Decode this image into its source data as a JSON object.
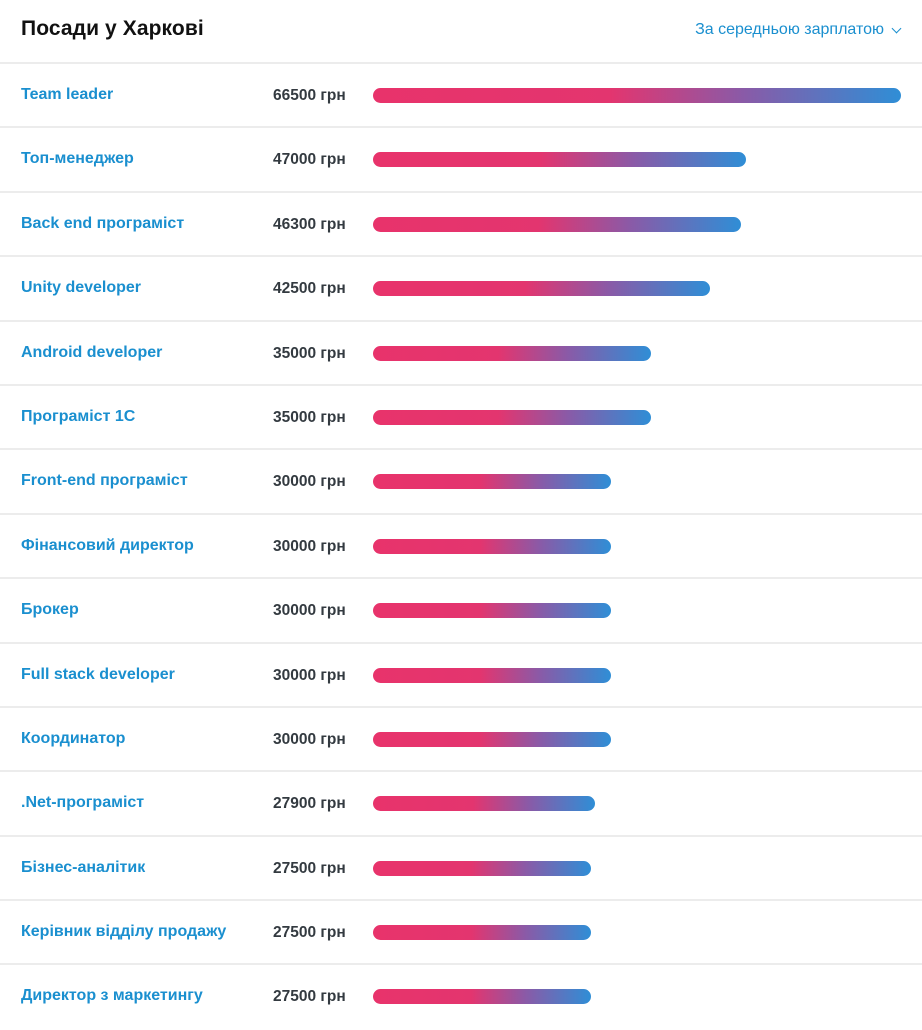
{
  "header": {
    "title": "Посади у Харкові",
    "sort_label": "За середньою зарплатою"
  },
  "max_salary": 66500,
  "jobs": [
    {
      "title": "Team leader",
      "salary": 66500,
      "salary_text": "66500 грн"
    },
    {
      "title": "Топ-менеджер",
      "salary": 47000,
      "salary_text": "47000 грн"
    },
    {
      "title": "Back end програміст",
      "salary": 46300,
      "salary_text": "46300 грн"
    },
    {
      "title": "Unity developer",
      "salary": 42500,
      "salary_text": "42500 грн"
    },
    {
      "title": "Android developer",
      "salary": 35000,
      "salary_text": "35000 грн"
    },
    {
      "title": "Програміст 1С",
      "salary": 35000,
      "salary_text": "35000 грн"
    },
    {
      "title": "Front-end програміст",
      "salary": 30000,
      "salary_text": "30000 грн"
    },
    {
      "title": "Фінансовий директор",
      "salary": 30000,
      "salary_text": "30000 грн"
    },
    {
      "title": "Брокер",
      "salary": 30000,
      "salary_text": "30000 грн"
    },
    {
      "title": "Full stack developer",
      "salary": 30000,
      "salary_text": "30000 грн"
    },
    {
      "title": "Координатор",
      "salary": 30000,
      "salary_text": "30000 грн"
    },
    {
      "title": ".Net-програміст",
      "salary": 27900,
      "salary_text": "27900 грн"
    },
    {
      "title": "Бізнес-аналітик",
      "salary": 27500,
      "salary_text": "27500 грн"
    },
    {
      "title": "Керівник відділу продажу",
      "salary": 27500,
      "salary_text": "27500 грн"
    },
    {
      "title": "Директор з маркетингу",
      "salary": 27500,
      "salary_text": "27500 грн"
    }
  ],
  "colors": {
    "link": "#1a8fcf",
    "bar_start": "#e8336b",
    "bar_end": "#2f8ed6",
    "divider": "#ececec"
  }
}
